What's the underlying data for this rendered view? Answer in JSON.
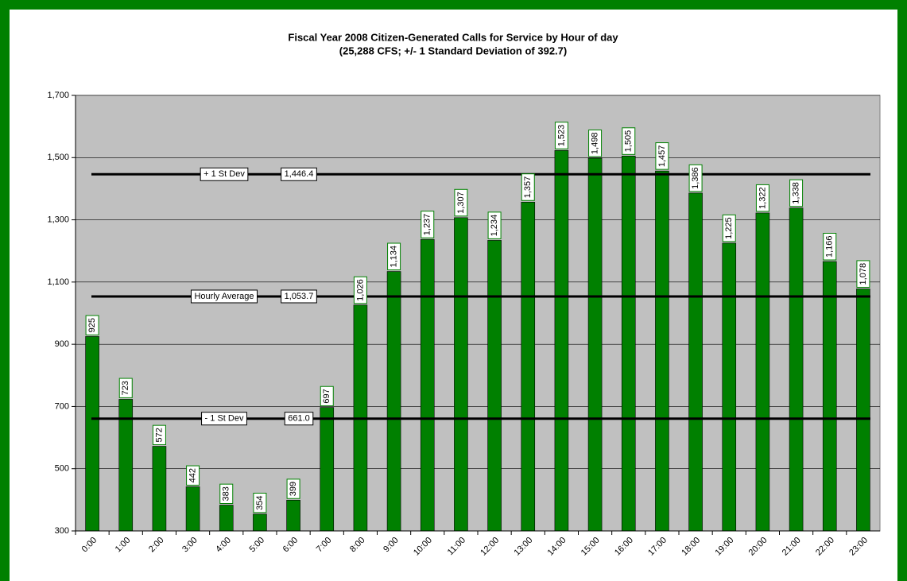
{
  "chart_data": {
    "type": "bar",
    "title": "Fiscal Year 2008 Citizen-Generated Calls for Service by Hour of day",
    "subtitle": "(25,288 CFS; +/- 1 Standard Deviation of 392.7)",
    "categories": [
      "0:00",
      "1:00",
      "2:00",
      "3:00",
      "4:00",
      "5:00",
      "6:00",
      "7:00",
      "8:00",
      "9:00",
      "10:00",
      "11:00",
      "12:00",
      "13:00",
      "14:00",
      "15:00",
      "16:00",
      "17:00",
      "18:00",
      "19:00",
      "20:00",
      "21:00",
      "22:00",
      "23:00"
    ],
    "values": [
      925,
      723,
      572,
      442,
      383,
      354,
      399,
      697,
      1026,
      1134,
      1237,
      1307,
      1234,
      1357,
      1523,
      1498,
      1505,
      1457,
      1386,
      1225,
      1322,
      1338,
      1166,
      1078
    ],
    "value_labels": [
      "925",
      "723",
      "572",
      "442",
      "383",
      "354",
      "399",
      "697",
      "1,026",
      "1,134",
      "1,237",
      "1,307",
      "1,234",
      "1,357",
      "1,523",
      "1,498",
      "1,505",
      "1,457",
      "1,386",
      "1,225",
      "1,322",
      "1,338",
      "1,166",
      "1,078"
    ],
    "color": "#008000",
    "ylim": [
      300,
      1700
    ],
    "yticks": [
      300,
      500,
      700,
      900,
      {
        "value": 1100,
        "label": "1,100"
      },
      {
        "value": 1300,
        "label": "1,300"
      },
      {
        "value": 1500,
        "label": "1,500"
      },
      {
        "value": 1700,
        "label": "1,700"
      }
    ],
    "grid": true,
    "reference_lines": [
      {
        "label": "+ 1 St Dev",
        "value": 1446.4,
        "value_label": "1,446.4"
      },
      {
        "label": "Hourly Average",
        "value": 1053.7,
        "value_label": "1,053.7"
      },
      {
        "label": "- 1 St Dev",
        "value": 661.0,
        "value_label": "661.0"
      }
    ]
  }
}
